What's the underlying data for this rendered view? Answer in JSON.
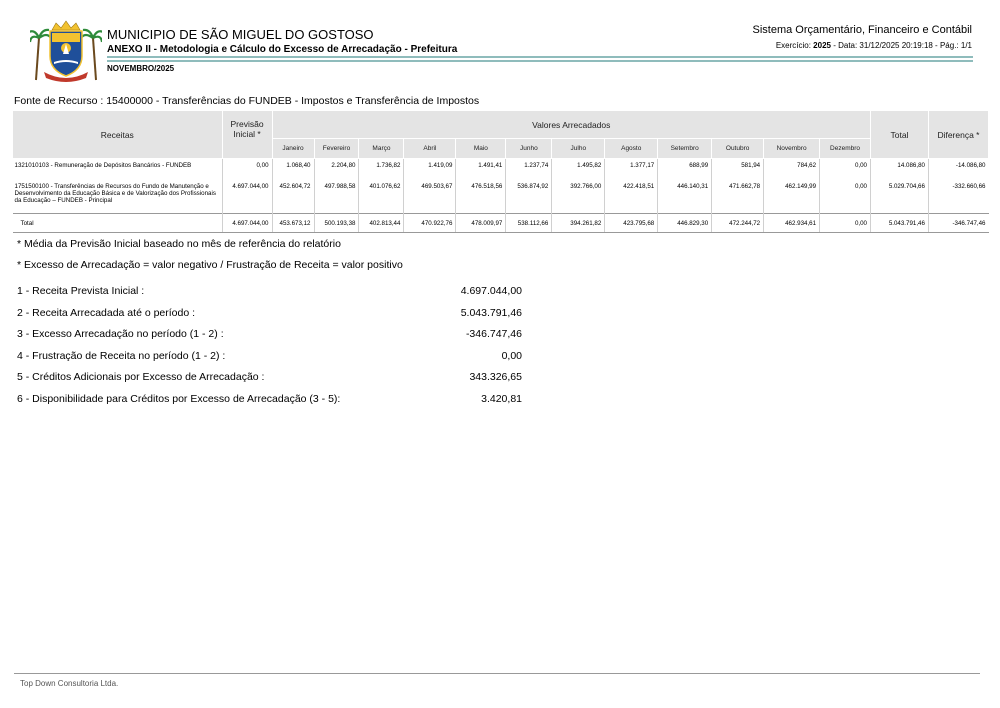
{
  "header": {
    "municipality": "MUNICIPIO DE SÃO MIGUEL DO GOSTOSO",
    "annex_title": "ANEXO II - Metodologia e Cálculo do Excesso de Arrecadação - Prefeitura",
    "period": "NOVEMBRO/2025",
    "system_name": "Sistema Orçamentário, Financeiro e Contábil",
    "exercise_label": "Exercício:",
    "exercise_year": "2025",
    "date_info": "- Data: 31/12/2025 20:19:18 -",
    "page_info": "Pág.: 1/1"
  },
  "logo": {
    "name": "municipal-coat-of-arms",
    "colors": [
      "#1f4f9a",
      "#f2c230",
      "#2e8b3a",
      "#c0392b"
    ]
  },
  "fonte": "Fonte de Recurso : 15400000 - Transferências do FUNDEB - Impostos e Transferência de Impostos",
  "table": {
    "col_receitas": "Receitas",
    "col_previsao": "Previsão Inicial *",
    "col_valores": "Valores Arrecadados",
    "col_total": "Total",
    "col_diferenca": "Diferença *",
    "months": [
      "Janeiro",
      "Fevereiro",
      "Março",
      "Abril",
      "Maio",
      "Junho",
      "Julho",
      "Agosto",
      "Setembro",
      "Outubro",
      "Novembro",
      "Dezembro"
    ],
    "rows": [
      {
        "desc": "1321010103 - Remuneração de Depósitos Bancários - FUNDEB",
        "previsao": "0,00",
        "months": [
          "1.068,40",
          "2.204,80",
          "1.736,82",
          "1.419,09",
          "1.491,41",
          "1.237,74",
          "1.495,82",
          "1.377,17",
          "688,99",
          "581,94",
          "784,62",
          "0,00"
        ],
        "total": "14.086,80",
        "diferenca": "-14.086,80"
      },
      {
        "desc": "1751500100 - Transferências de Recursos do Fundo de Manutenção e Desenvolvimento da Educação Básica e de Valorização dos Profissionais da Educação – FUNDEB - Principal",
        "previsao": "4.697.044,00",
        "months": [
          "452.604,72",
          "497.988,58",
          "401.076,62",
          "469.503,67",
          "476.518,56",
          "536.874,92",
          "392.766,00",
          "422.418,51",
          "446.140,31",
          "471.662,78",
          "462.149,99",
          "0,00"
        ],
        "total": "5.029.704,66",
        "diferenca": "-332.660,66"
      }
    ],
    "total_row": {
      "label": "Total",
      "previsao": "4.697.044,00",
      "months": [
        "453.673,12",
        "500.193,38",
        "402.813,44",
        "470.922,76",
        "478.009,97",
        "538.112,66",
        "394.261,82",
        "423.795,68",
        "446.829,30",
        "472.244,72",
        "462.934,61",
        "0,00"
      ],
      "total": "5.043.791,46",
      "diferenca": "-346.747,46"
    }
  },
  "notes": [
    "* Média da Previsão Inicial baseado no mês de referência do relatório",
    "* Excesso de Arrecadação = valor negativo / Frustração de Receita = valor positivo"
  ],
  "summary": [
    {
      "label": "1 - Receita Prevista Inicial :",
      "value": "4.697.044,00"
    },
    {
      "label": "2 - Receita Arrecadada até o período :",
      "value": "5.043.791,46"
    },
    {
      "label": "3 - Excesso Arrecadação no período (1 - 2) :",
      "value": "-346.747,46"
    },
    {
      "label": "4 - Frustração de Receita no período (1 - 2) :",
      "value": "0,00"
    },
    {
      "label": "5 - Créditos Adicionais por Excesso de Arrecadação :",
      "value": "343.326,65"
    },
    {
      "label": "6 - Disponibilidade para Créditos por Excesso de Arrecadação (3 - 5):",
      "value": "3.420,81"
    }
  ],
  "footer": "Top Down Consultoria Ltda."
}
